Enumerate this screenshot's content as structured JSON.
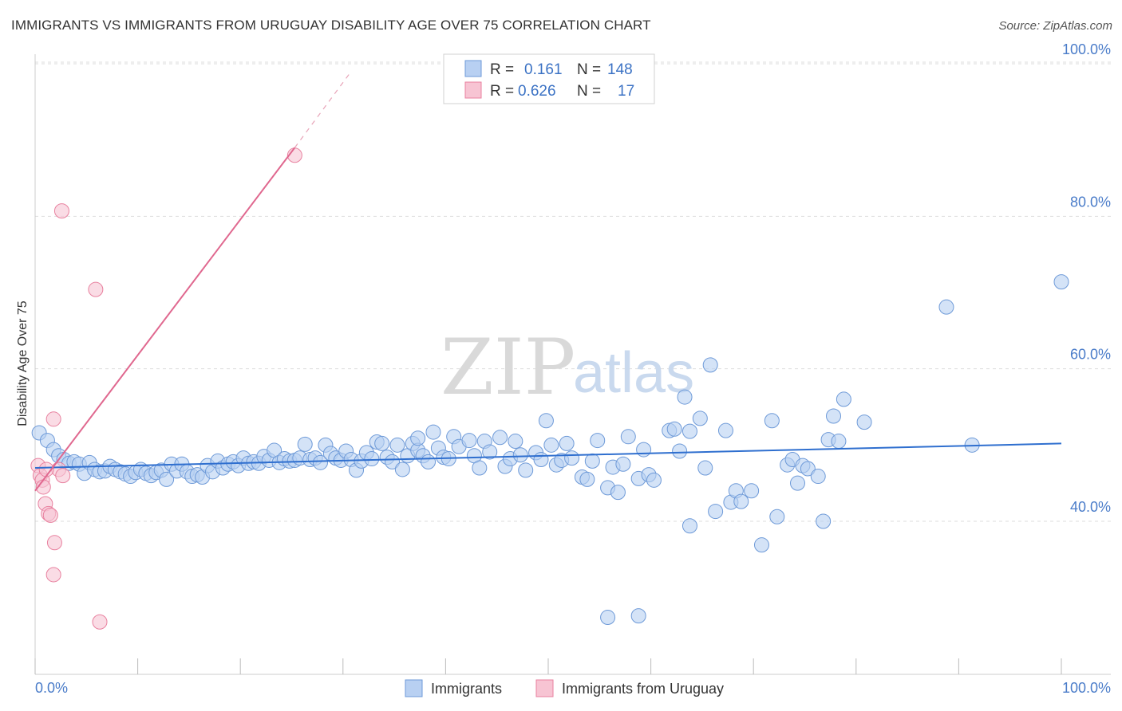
{
  "title": "IMMIGRANTS VS IMMIGRANTS FROM URUGUAY DISABILITY AGE OVER 75 CORRELATION CHART",
  "source": "Source: ZipAtlas.com",
  "watermark": {
    "zip": "ZIP",
    "atlas": "atlas"
  },
  "colors": {
    "blue_fill": "#b8d0f2",
    "blue_stroke": "#6e9ad8",
    "blue_line": "#2f6fcf",
    "pink_fill": "#f7c4d3",
    "pink_stroke": "#e8819f",
    "pink_line": "#e0688f",
    "grid": "#dddddd",
    "axis_text": "#4a7cc9"
  },
  "legend": {
    "rows": [
      {
        "r_label": "R =",
        "r_value": "0.161",
        "n_label": "N =",
        "n_value": "148"
      },
      {
        "r_label": "R =",
        "r_value": "0.626",
        "n_label": "N =",
        "n_value": "17"
      }
    ]
  },
  "bottom_legend": [
    "Immigrants",
    "Immigrants from Uruguay"
  ],
  "chart_data": {
    "type": "scatter",
    "title": "IMMIGRANTS VS IMMIGRANTS FROM URUGUAY DISABILITY AGE OVER 75 CORRELATION CHART",
    "xlabel": "",
    "ylabel": "Disability Age Over 75",
    "xlim": [
      0,
      100
    ],
    "ylim": [
      20,
      102
    ],
    "x_tick_labels": [
      "0.0%",
      "100.0%"
    ],
    "y_ticks": [
      40,
      60,
      80,
      100
    ],
    "y_tick_labels": [
      "40.0%",
      "60.0%",
      "80.0%",
      "100.0%"
    ],
    "series": [
      {
        "name": "Immigrants",
        "r": 0.161,
        "n": 148,
        "trend": {
          "x0": 0,
          "y0": 47.0,
          "x1": 100,
          "y1": 50.2
        },
        "points": [
          [
            0.4,
            51.6
          ],
          [
            1.2,
            50.6
          ],
          [
            1.8,
            49.4
          ],
          [
            2.3,
            48.6
          ],
          [
            2.8,
            48.1
          ],
          [
            3.3,
            47.6
          ],
          [
            3.8,
            47.8
          ],
          [
            4.3,
            47.5
          ],
          [
            4.8,
            46.3
          ],
          [
            5.3,
            47.7
          ],
          [
            5.8,
            46.8
          ],
          [
            6.3,
            46.5
          ],
          [
            6.8,
            46.6
          ],
          [
            7.3,
            47.2
          ],
          [
            7.8,
            46.8
          ],
          [
            8.3,
            46.5
          ],
          [
            8.8,
            46.2
          ],
          [
            9.3,
            45.9
          ],
          [
            9.8,
            46.4
          ],
          [
            10.3,
            46.8
          ],
          [
            10.8,
            46.3
          ],
          [
            11.3,
            46.0
          ],
          [
            11.8,
            46.4
          ],
          [
            12.3,
            46.7
          ],
          [
            12.8,
            45.5
          ],
          [
            13.3,
            47.5
          ],
          [
            13.8,
            46.6
          ],
          [
            14.3,
            47.5
          ],
          [
            14.8,
            46.5
          ],
          [
            15.3,
            45.9
          ],
          [
            15.8,
            46.1
          ],
          [
            16.3,
            45.8
          ],
          [
            16.8,
            47.3
          ],
          [
            17.3,
            46.5
          ],
          [
            17.8,
            47.9
          ],
          [
            18.3,
            47.0
          ],
          [
            18.8,
            47.5
          ],
          [
            19.3,
            47.8
          ],
          [
            19.8,
            47.3
          ],
          [
            20.3,
            48.3
          ],
          [
            20.8,
            47.6
          ],
          [
            21.3,
            47.8
          ],
          [
            21.8,
            47.6
          ],
          [
            22.3,
            48.5
          ],
          [
            22.8,
            48.0
          ],
          [
            23.3,
            49.3
          ],
          [
            23.8,
            47.7
          ],
          [
            24.3,
            48.2
          ],
          [
            24.8,
            47.9
          ],
          [
            25.3,
            48.0
          ],
          [
            25.8,
            48.3
          ],
          [
            26.3,
            50.1
          ],
          [
            26.8,
            48.1
          ],
          [
            27.3,
            48.3
          ],
          [
            27.8,
            47.7
          ],
          [
            28.3,
            50.0
          ],
          [
            28.8,
            48.9
          ],
          [
            29.3,
            48.3
          ],
          [
            29.8,
            48.0
          ],
          [
            30.3,
            49.2
          ],
          [
            30.8,
            48.1
          ],
          [
            31.3,
            46.7
          ],
          [
            31.8,
            47.9
          ],
          [
            32.3,
            49.0
          ],
          [
            32.8,
            48.2
          ],
          [
            33.3,
            50.4
          ],
          [
            33.8,
            50.2
          ],
          [
            34.3,
            48.4
          ],
          [
            34.8,
            47.8
          ],
          [
            35.3,
            50.0
          ],
          [
            35.8,
            46.8
          ],
          [
            36.3,
            48.6
          ],
          [
            36.8,
            50.2
          ],
          [
            37.3,
            49.3
          ],
          [
            37.8,
            48.6
          ],
          [
            38.3,
            47.8
          ],
          [
            38.8,
            51.7
          ],
          [
            39.3,
            49.6
          ],
          [
            39.8,
            48.4
          ],
          [
            40.3,
            48.2
          ],
          [
            40.8,
            51.1
          ],
          [
            41.3,
            49.8
          ],
          [
            42.3,
            50.6
          ],
          [
            42.8,
            48.6
          ],
          [
            43.3,
            47.0
          ],
          [
            43.8,
            50.5
          ],
          [
            44.3,
            49.1
          ],
          [
            45.3,
            51.0
          ],
          [
            45.8,
            47.2
          ],
          [
            46.3,
            48.2
          ],
          [
            46.8,
            50.5
          ],
          [
            47.3,
            48.7
          ],
          [
            47.8,
            46.7
          ],
          [
            48.8,
            49.0
          ],
          [
            49.3,
            48.1
          ],
          [
            49.8,
            53.2
          ],
          [
            50.3,
            50.0
          ],
          [
            50.8,
            47.4
          ],
          [
            51.3,
            48.0
          ],
          [
            51.8,
            50.2
          ],
          [
            52.3,
            48.3
          ],
          [
            53.3,
            45.8
          ],
          [
            53.8,
            45.5
          ],
          [
            54.3,
            47.9
          ],
          [
            54.8,
            50.6
          ],
          [
            55.8,
            44.4
          ],
          [
            56.3,
            47.1
          ],
          [
            56.8,
            43.8
          ],
          [
            57.3,
            47.5
          ],
          [
            57.8,
            51.1
          ],
          [
            58.8,
            45.6
          ],
          [
            59.3,
            49.4
          ],
          [
            59.8,
            46.1
          ],
          [
            60.3,
            45.4
          ],
          [
            61.8,
            51.9
          ],
          [
            62.3,
            52.1
          ],
          [
            62.8,
            49.2
          ],
          [
            63.3,
            56.3
          ],
          [
            63.8,
            51.8
          ],
          [
            64.8,
            53.5
          ],
          [
            65.3,
            47.0
          ],
          [
            65.8,
            60.5
          ],
          [
            66.3,
            41.3
          ],
          [
            67.3,
            51.9
          ],
          [
            67.8,
            42.5
          ],
          [
            68.3,
            44.0
          ],
          [
            68.8,
            42.6
          ],
          [
            69.8,
            44.0
          ],
          [
            70.8,
            36.9
          ],
          [
            71.8,
            53.2
          ],
          [
            72.3,
            40.6
          ],
          [
            73.3,
            47.4
          ],
          [
            73.8,
            48.1
          ],
          [
            74.3,
            45.0
          ],
          [
            74.8,
            47.3
          ],
          [
            75.3,
            46.9
          ],
          [
            76.3,
            45.9
          ],
          [
            76.8,
            40.0
          ],
          [
            77.3,
            50.7
          ],
          [
            77.8,
            53.8
          ],
          [
            78.3,
            50.5
          ],
          [
            78.8,
            56.0
          ],
          [
            80.8,
            53.0
          ],
          [
            63.8,
            39.4
          ],
          [
            55.8,
            27.4
          ],
          [
            58.8,
            27.6
          ],
          [
            88.8,
            68.1
          ],
          [
            91.3,
            50.0
          ],
          [
            100.0,
            71.4
          ],
          [
            37.3,
            50.9
          ]
        ]
      },
      {
        "name": "Immigrants from Uruguay",
        "r": 0.626,
        "n": 17,
        "trend": {
          "x0": 0,
          "y0": 44.0,
          "x1": 25.3,
          "y1": 89.0,
          "dash_x1": 30.8,
          "dash_y1": 99.0
        },
        "points": [
          [
            0.3,
            47.3
          ],
          [
            0.5,
            46.0
          ],
          [
            0.7,
            45.4
          ],
          [
            0.8,
            44.5
          ],
          [
            1.0,
            42.3
          ],
          [
            1.3,
            41.0
          ],
          [
            1.5,
            40.8
          ],
          [
            1.8,
            53.4
          ],
          [
            1.9,
            37.2
          ],
          [
            1.8,
            33.0
          ],
          [
            2.3,
            46.8
          ],
          [
            2.7,
            46.0
          ],
          [
            2.6,
            80.7
          ],
          [
            5.9,
            70.4
          ],
          [
            6.3,
            26.8
          ],
          [
            25.3,
            88.0
          ],
          [
            1.1,
            46.8
          ]
        ]
      }
    ]
  }
}
